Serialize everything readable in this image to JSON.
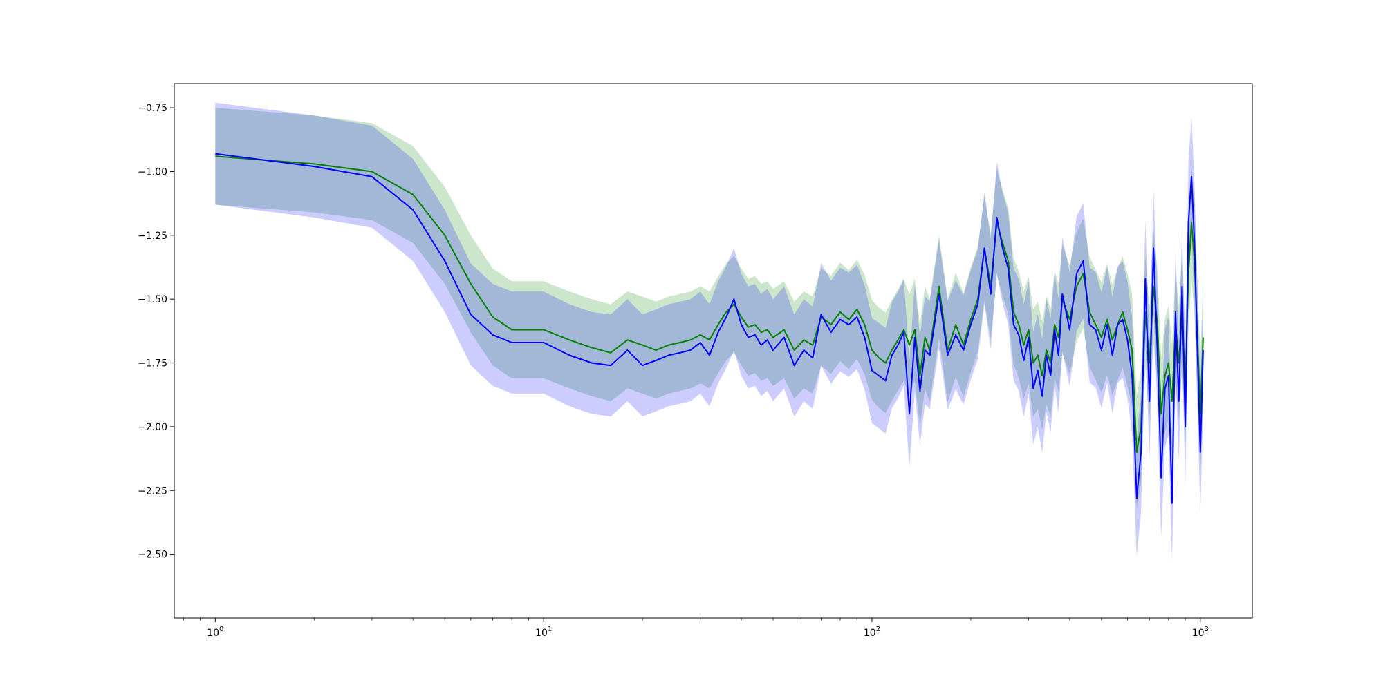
{
  "chart_data": {
    "type": "line",
    "title": "",
    "xlabel": "",
    "ylabel": "",
    "xscale": "log",
    "xlim": [
      0.75,
      1440
    ],
    "ylim": [
      -2.75,
      -0.655
    ],
    "grid": false,
    "legend": "none",
    "x_ticks": [
      {
        "value": 1,
        "base": "10",
        "exp": "0"
      },
      {
        "value": 10,
        "base": "10",
        "exp": "1"
      },
      {
        "value": 100,
        "base": "10",
        "exp": "2"
      },
      {
        "value": 1000,
        "base": "10",
        "exp": "3"
      }
    ],
    "y_ticks": [
      {
        "value": -0.75,
        "label": "−0.75"
      },
      {
        "value": -1.0,
        "label": "−1.00"
      },
      {
        "value": -1.25,
        "label": "−1.25"
      },
      {
        "value": -1.5,
        "label": "−1.50"
      },
      {
        "value": -1.75,
        "label": "−1.75"
      },
      {
        "value": -2.0,
        "label": "−2.00"
      },
      {
        "value": -2.25,
        "label": "−2.25"
      },
      {
        "value": -2.5,
        "label": "−2.50"
      }
    ],
    "series": [
      {
        "color": "#008000",
        "band_color": "#008000",
        "band_opacity": 0.2,
        "x": [
          1,
          2,
          3,
          4,
          5,
          6,
          7,
          8,
          10,
          12,
          14,
          16,
          18,
          20,
          22,
          24,
          26,
          28,
          30,
          32,
          34,
          36,
          38,
          40,
          42,
          44,
          46,
          48,
          50,
          54,
          58,
          62,
          66,
          70,
          75,
          80,
          85,
          90,
          95,
          100,
          105,
          110,
          115,
          120,
          125,
          130,
          135,
          140,
          145,
          150,
          160,
          170,
          180,
          190,
          200,
          210,
          220,
          230,
          240,
          250,
          260,
          270,
          280,
          290,
          300,
          310,
          320,
          330,
          340,
          350,
          360,
          370,
          380,
          400,
          420,
          440,
          460,
          480,
          500,
          520,
          540,
          560,
          580,
          600,
          620,
          640,
          660,
          680,
          700,
          720,
          740,
          760,
          780,
          800,
          820,
          840,
          860,
          880,
          900,
          920,
          940,
          960,
          980,
          1000,
          1020
        ],
        "y": [
          -0.94,
          -0.97,
          -1.0,
          -1.09,
          -1.25,
          -1.44,
          -1.57,
          -1.62,
          -1.62,
          -1.66,
          -1.69,
          -1.71,
          -1.66,
          -1.68,
          -1.7,
          -1.68,
          -1.67,
          -1.66,
          -1.64,
          -1.66,
          -1.6,
          -1.55,
          -1.52,
          -1.57,
          -1.61,
          -1.6,
          -1.63,
          -1.62,
          -1.65,
          -1.62,
          -1.7,
          -1.66,
          -1.68,
          -1.57,
          -1.6,
          -1.55,
          -1.58,
          -1.54,
          -1.6,
          -1.7,
          -1.73,
          -1.75,
          -1.7,
          -1.66,
          -1.62,
          -1.68,
          -1.62,
          -1.8,
          -1.65,
          -1.7,
          -1.45,
          -1.7,
          -1.6,
          -1.68,
          -1.58,
          -1.5,
          -1.3,
          -1.45,
          -1.2,
          -1.28,
          -1.35,
          -1.55,
          -1.6,
          -1.68,
          -1.62,
          -1.75,
          -1.72,
          -1.8,
          -1.7,
          -1.75,
          -1.6,
          -1.65,
          -1.5,
          -1.58,
          -1.45,
          -1.4,
          -1.55,
          -1.6,
          -1.65,
          -1.58,
          -1.66,
          -1.6,
          -1.55,
          -1.62,
          -1.7,
          -2.1,
          -2.0,
          -1.55,
          -1.75,
          -1.45,
          -1.6,
          -1.95,
          -1.8,
          -1.75,
          -1.9,
          -1.6,
          -1.75,
          -1.55,
          -1.85,
          -1.4,
          -1.2,
          -1.35,
          -1.65,
          -1.95,
          -1.65
        ]
      },
      {
        "color": "#0000ff",
        "band_color": "#0000ff",
        "band_opacity": 0.2,
        "x": [
          1,
          2,
          3,
          4,
          5,
          6,
          7,
          8,
          10,
          12,
          14,
          16,
          18,
          20,
          22,
          24,
          26,
          28,
          30,
          32,
          34,
          36,
          38,
          40,
          42,
          44,
          46,
          48,
          50,
          54,
          58,
          62,
          66,
          70,
          75,
          80,
          85,
          90,
          95,
          100,
          105,
          110,
          115,
          120,
          125,
          130,
          135,
          140,
          145,
          150,
          160,
          170,
          180,
          190,
          200,
          210,
          220,
          230,
          240,
          250,
          260,
          270,
          280,
          290,
          300,
          310,
          320,
          330,
          340,
          350,
          360,
          370,
          380,
          400,
          420,
          440,
          460,
          480,
          500,
          520,
          540,
          560,
          580,
          600,
          620,
          640,
          660,
          680,
          700,
          720,
          740,
          760,
          780,
          800,
          820,
          840,
          860,
          880,
          900,
          920,
          940,
          960,
          980,
          1000,
          1020
        ],
        "y": [
          -0.93,
          -0.98,
          -1.02,
          -1.15,
          -1.35,
          -1.56,
          -1.64,
          -1.67,
          -1.67,
          -1.72,
          -1.75,
          -1.76,
          -1.7,
          -1.76,
          -1.74,
          -1.72,
          -1.71,
          -1.7,
          -1.67,
          -1.72,
          -1.63,
          -1.57,
          -1.5,
          -1.6,
          -1.65,
          -1.64,
          -1.68,
          -1.66,
          -1.7,
          -1.65,
          -1.76,
          -1.7,
          -1.73,
          -1.56,
          -1.63,
          -1.58,
          -1.6,
          -1.57,
          -1.65,
          -1.78,
          -1.8,
          -1.82,
          -1.72,
          -1.68,
          -1.63,
          -1.95,
          -1.65,
          -1.86,
          -1.7,
          -1.72,
          -1.48,
          -1.72,
          -1.64,
          -1.7,
          -1.6,
          -1.52,
          -1.3,
          -1.48,
          -1.18,
          -1.3,
          -1.38,
          -1.6,
          -1.64,
          -1.74,
          -1.65,
          -1.85,
          -1.78,
          -1.88,
          -1.72,
          -1.8,
          -1.62,
          -1.72,
          -1.48,
          -1.62,
          -1.4,
          -1.35,
          -1.6,
          -1.62,
          -1.7,
          -1.6,
          -1.72,
          -1.6,
          -1.58,
          -1.66,
          -1.8,
          -2.28,
          -2.1,
          -1.42,
          -1.9,
          -1.3,
          -1.7,
          -2.2,
          -1.85,
          -1.8,
          -2.3,
          -1.55,
          -1.9,
          -1.45,
          -2.0,
          -1.2,
          -1.02,
          -1.28,
          -1.7,
          -2.1,
          -1.7
        ]
      }
    ]
  }
}
